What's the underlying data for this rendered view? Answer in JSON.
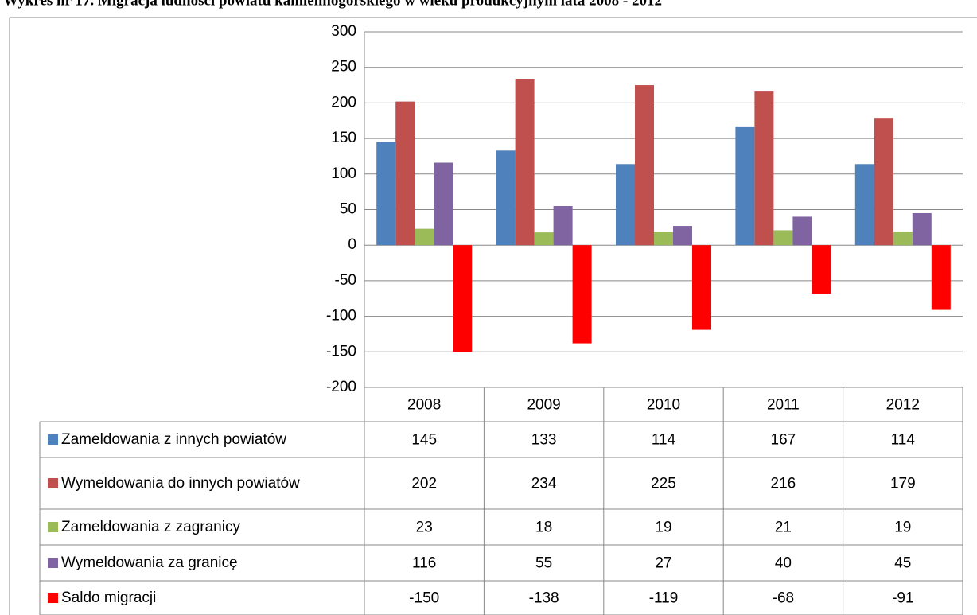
{
  "chart_data": {
    "type": "bar",
    "title": "Wykres nr 17. Migracja ludności powiatu kamiennogórskiego w wieku produkcyjnym  lata 2008 - 2012",
    "categories": [
      "2008",
      "2009",
      "2010",
      "2011",
      "2012"
    ],
    "series": [
      {
        "name": "Zameldowania z innych powiatów",
        "color": "#4f81bd",
        "values": [
          145,
          133,
          114,
          167,
          114
        ]
      },
      {
        "name": "Wymeldowania do innych powiatów",
        "color": "#c0504d",
        "values": [
          202,
          234,
          225,
          216,
          179
        ]
      },
      {
        "name": "Zameldowania z zagranicy",
        "color": "#9bbb59",
        "values": [
          23,
          18,
          19,
          21,
          19
        ]
      },
      {
        "name": "Wymeldowania za granicę",
        "color": "#8064a2",
        "values": [
          116,
          55,
          27,
          40,
          45
        ]
      },
      {
        "name": "Saldo migracji",
        "color": "#ff0000",
        "values": [
          -150,
          -138,
          -119,
          -68,
          -91
        ]
      }
    ],
    "ylim": [
      -200,
      300
    ],
    "yticks": [
      300,
      250,
      200,
      150,
      100,
      50,
      0,
      -50,
      -100,
      -150,
      -200
    ],
    "grid": true
  }
}
